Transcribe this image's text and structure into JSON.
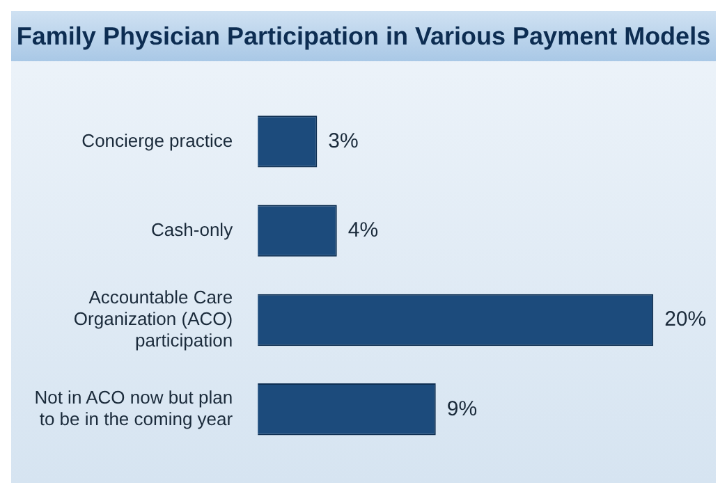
{
  "chart_data": {
    "type": "bar",
    "orientation": "horizontal",
    "title": "Family Physician Participation in Various Payment Models",
    "categories": [
      "Concierge practice",
      "Cash-only",
      "Accountable Care Organization (ACO) participation",
      "Not in ACO now but plan to be in the coming year"
    ],
    "values": [
      3,
      4,
      20,
      9
    ],
    "value_labels": [
      "3%",
      "4%",
      "20%",
      "9%"
    ],
    "color": "#1c4b7c"
  }
}
